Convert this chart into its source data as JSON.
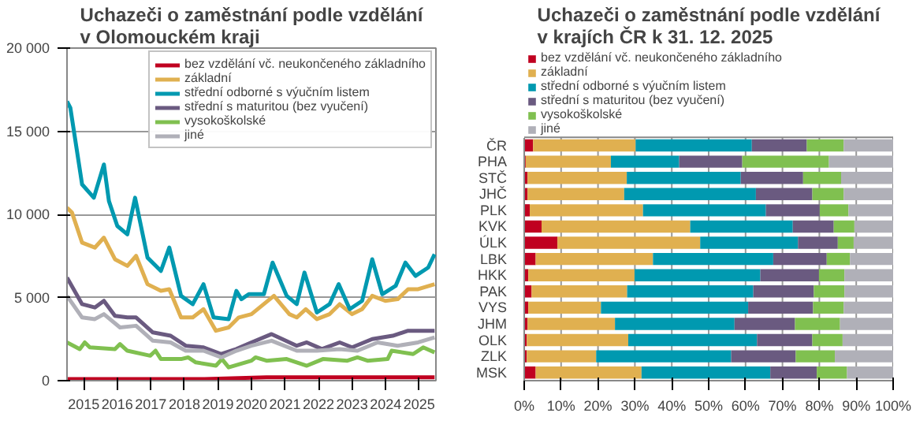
{
  "chart_data": [
    {
      "type": "line",
      "title": "Uchazeči o zaměstnání podle vzdělání v Olomouckém kraji",
      "xlim": [
        2015,
        2026
      ],
      "xticks": [
        {
          "value": 2015.5,
          "label": "2015"
        },
        {
          "value": 2016.5,
          "label": "2016"
        },
        {
          "value": 2017.5,
          "label": "2017"
        },
        {
          "value": 2018.5,
          "label": "2018"
        },
        {
          "value": 2019.5,
          "label": "2019"
        },
        {
          "value": 2020.5,
          "label": "2020"
        },
        {
          "value": 2021.5,
          "label": "2021"
        },
        {
          "value": 2022.5,
          "label": "2022"
        },
        {
          "value": 2023.5,
          "label": "2023"
        },
        {
          "value": 2024.5,
          "label": "2024"
        },
        {
          "value": 2025.5,
          "label": "2025"
        }
      ],
      "ylim": [
        0,
        20000
      ],
      "yticks": [
        {
          "value": 0,
          "label": "0"
        },
        {
          "value": 5000,
          "label": "5 000"
        },
        {
          "value": 10000,
          "label": "10 000"
        },
        {
          "value": 15000,
          "label": "15 000"
        },
        {
          "value": 20000,
          "label": "20 000"
        }
      ],
      "grid": "y",
      "legend": "top right",
      "series": [
        {
          "name": "bez vzdělání vč. neukončeného základního",
          "color": "#c00020",
          "x": [
            2015.0,
            2019.1,
            2020.95,
            2023.96,
            2025.32,
            2025.96
          ],
          "values": [
            100,
            100,
            200,
            200,
            200,
            200
          ]
        },
        {
          "name": "základní",
          "color": "#e0b050",
          "x": [
            2015.0,
            2015.15,
            2015.45,
            2015.83,
            2016.1,
            2016.43,
            2016.8,
            2017.06,
            2017.4,
            2017.8,
            2018.05,
            2018.4,
            2018.75,
            2019.07,
            2019.44,
            2019.82,
            2020.12,
            2020.5,
            2021.17,
            2021.63,
            2021.85,
            2022.12,
            2022.45,
            2022.83,
            2023.13,
            2023.5,
            2023.8,
            2024.1,
            2024.49,
            2024.86,
            2025.17,
            2025.47,
            2025.96
          ],
          "values": [
            10400,
            10100,
            8300,
            8000,
            8600,
            7300,
            6900,
            7500,
            5800,
            5400,
            5500,
            3800,
            3800,
            4300,
            3000,
            3200,
            3800,
            4000,
            5100,
            4000,
            3800,
            4300,
            3700,
            4000,
            4600,
            4000,
            4300,
            5100,
            4800,
            4900,
            5500,
            5500,
            5800
          ]
        },
        {
          "name": "střední odborné s výučním listem",
          "color": "#0099b0",
          "x": [
            2015.0,
            2015.1,
            2015.45,
            2015.8,
            2016.1,
            2016.25,
            2016.5,
            2016.8,
            2017.03,
            2017.4,
            2017.8,
            2018.05,
            2018.4,
            2018.75,
            2019.07,
            2019.37,
            2019.82,
            2020.05,
            2020.2,
            2020.42,
            2020.87,
            2021.13,
            2021.55,
            2021.85,
            2022.08,
            2022.45,
            2022.83,
            2023.1,
            2023.43,
            2023.8,
            2024.1,
            2024.4,
            2024.8,
            2025.09,
            2025.39,
            2025.77,
            2025.96
          ],
          "values": [
            16800,
            16400,
            11800,
            11000,
            13000,
            10800,
            9300,
            8800,
            11000,
            7400,
            6600,
            8000,
            5100,
            4600,
            5800,
            3800,
            3700,
            5400,
            4900,
            5200,
            5200,
            7100,
            5100,
            4600,
            6500,
            4100,
            4600,
            5800,
            4300,
            4800,
            7300,
            5200,
            5700,
            7100,
            6300,
            6800,
            7600
          ]
        },
        {
          "name": "střední s maturitou (bez vyučení)",
          "color": "#6a5a80",
          "x": [
            2015.0,
            2015.45,
            2015.83,
            2016.1,
            2016.43,
            2016.8,
            2017.06,
            2017.56,
            2018.09,
            2018.54,
            2019.07,
            2019.6,
            2020.05,
            2020.5,
            2021.1,
            2021.85,
            2022.15,
            2022.6,
            2023.13,
            2023.5,
            2024.1,
            2024.71,
            2025.17,
            2025.96
          ],
          "values": [
            6200,
            4600,
            4400,
            4800,
            3900,
            3800,
            3800,
            2900,
            2700,
            2100,
            2000,
            1600,
            1900,
            2300,
            2800,
            2100,
            2300,
            1900,
            2300,
            2000,
            2500,
            2700,
            3000,
            3000
          ]
        },
        {
          "name": "vysokoškolské",
          "color": "#80c050",
          "x": [
            2015.0,
            2015.38,
            2015.53,
            2015.68,
            2016.43,
            2016.58,
            2016.8,
            2017.48,
            2017.64,
            2017.8,
            2018.4,
            2018.61,
            2018.84,
            2019.44,
            2019.62,
            2019.82,
            2020.5,
            2020.62,
            2020.95,
            2021.55,
            2022.15,
            2022.63,
            2023.36,
            2023.66,
            2023.96,
            2024.56,
            2024.68,
            2025.32,
            2025.62,
            2025.96
          ],
          "values": [
            2300,
            1900,
            2300,
            2000,
            1900,
            2200,
            1800,
            1500,
            1800,
            1300,
            1300,
            1400,
            1100,
            900,
            1300,
            800,
            1200,
            1400,
            1200,
            1300,
            900,
            1300,
            1200,
            1400,
            1200,
            1300,
            1800,
            1600,
            2000,
            1700
          ]
        },
        {
          "name": "jiné",
          "color": "#b0b0b8",
          "x": [
            2015.0,
            2015.45,
            2015.83,
            2016.1,
            2016.58,
            2017.06,
            2017.56,
            2018.09,
            2018.54,
            2019.07,
            2019.6,
            2020.05,
            2020.5,
            2021.1,
            2021.85,
            2022.45,
            2023.13,
            2023.66,
            2024.26,
            2024.86,
            2025.47,
            2025.96
          ],
          "values": [
            5100,
            3800,
            3700,
            4000,
            3200,
            3300,
            2400,
            2300,
            1800,
            1800,
            1400,
            1800,
            2100,
            2400,
            1800,
            1800,
            1900,
            1800,
            2300,
            2100,
            2300,
            2600
          ]
        }
      ]
    },
    {
      "type": "bar",
      "orientation": "horizontal",
      "stacked": true,
      "title": "Uchazeči o zaměstnání podle vzdělání v krajích ČR k 31. 12. 2025",
      "categories": [
        "ČR",
        "PHA",
        "STČ",
        "JHČ",
        "PLK",
        "KVK",
        "ÚLK",
        "LBK",
        "HKK",
        "PAK",
        "VYS",
        "JHM",
        "OLK",
        "ZLK",
        "MSK"
      ],
      "xlim": [
        0,
        100
      ],
      "xticks": [
        {
          "value": 0,
          "label": "0%"
        },
        {
          "value": 10,
          "label": "10%"
        },
        {
          "value": 20,
          "label": "20%"
        },
        {
          "value": 30,
          "label": "30%"
        },
        {
          "value": 40,
          "label": "40%"
        },
        {
          "value": 50,
          "label": "50%"
        },
        {
          "value": 60,
          "label": "60%"
        },
        {
          "value": 70,
          "label": "70%"
        },
        {
          "value": 80,
          "label": "80%"
        },
        {
          "value": 90,
          "label": "90%"
        },
        {
          "value": 100,
          "label": "100%"
        }
      ],
      "grid": "x",
      "legend": "top",
      "series": [
        {
          "name": "bez vzdělání vč. neukončeného základního",
          "color": "#c00020",
          "values": [
            2.4,
            0.4,
            0.9,
            0.9,
            1.5,
            4.7,
            9.0,
            3.1,
            1.1,
            2.0,
            1.1,
            0.9,
            0.7,
            0.7,
            3.1
          ]
        },
        {
          "name": "základní",
          "color": "#e0b050",
          "values": [
            27.8,
            23.1,
            26.9,
            26.2,
            30.7,
            40.3,
            38.7,
            31.8,
            28.8,
            25.9,
            19.7,
            23.7,
            27.5,
            18.8,
            28.7
          ]
        },
        {
          "name": "střední odborné s výučním listem",
          "color": "#0099b0",
          "values": [
            31.5,
            18.5,
            30.9,
            35.7,
            33.3,
            27.8,
            26.5,
            32.6,
            34.1,
            34.2,
            39.9,
            32.4,
            34.9,
            36.6,
            34.9
          ]
        },
        {
          "name": "střední s maturitou (bez vyučení)",
          "color": "#6a5a80",
          "values": [
            14.9,
            17.1,
            16.9,
            15.3,
            14.6,
            11.1,
            10.8,
            14.5,
            15.9,
            16.4,
            17.6,
            16.4,
            15.0,
            17.5,
            12.6
          ]
        },
        {
          "name": "vysokoškolské",
          "color": "#80c050",
          "values": [
            10.0,
            23.5,
            10.3,
            8.5,
            7.8,
            5.6,
            4.3,
            6.3,
            6.9,
            8.3,
            8.3,
            12.2,
            8.2,
            10.6,
            8.2
          ]
        },
        {
          "name": "jiné",
          "color": "#b0b0b8",
          "values": [
            13.4,
            17.4,
            14.1,
            13.4,
            12.1,
            10.5,
            10.7,
            11.7,
            13.2,
            13.2,
            13.4,
            14.4,
            13.7,
            15.8,
            12.5
          ]
        }
      ]
    }
  ]
}
